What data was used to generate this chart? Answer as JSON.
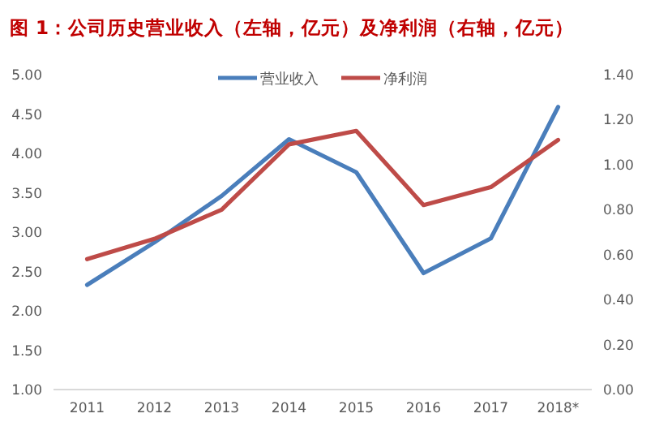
{
  "chart_data": {
    "type": "line",
    "title": "图 1：公司历史营业收入（左轴，亿元）及净利润（右轴，亿元）",
    "categories": [
      "2011",
      "2012",
      "2013",
      "2014",
      "2015",
      "2016",
      "2017",
      "2018*"
    ],
    "series": [
      {
        "name": "营业收入",
        "color": "#4a7ebb",
        "values": [
          2.33,
          2.87,
          3.46,
          4.18,
          3.76,
          2.48,
          2.92,
          4.59
        ]
      },
      {
        "name": "净利润",
        "color": "#be4b48",
        "axis": "y2",
        "values": [
          0.58,
          0.67,
          0.8,
          1.09,
          1.15,
          0.82,
          0.9,
          1.11
        ]
      }
    ],
    "ylim": [
      1,
      5
    ],
    "yticks": [
      {
        "value": 1,
        "label": "1.00"
      },
      {
        "value": 1.5,
        "label": "1.50"
      },
      {
        "value": 2,
        "label": "2.00"
      },
      {
        "value": 2.5,
        "label": "2.50"
      },
      {
        "value": 3,
        "label": "3.00"
      },
      {
        "value": 3.5,
        "label": "3.50"
      },
      {
        "value": 4,
        "label": "4.00"
      },
      {
        "value": 4.5,
        "label": "4.50"
      },
      {
        "value": 5,
        "label": "5.00"
      }
    ],
    "y2lim": [
      0,
      1.4
    ],
    "y2ticks": [
      {
        "value": 0,
        "label": "0.00"
      },
      {
        "value": 0.2,
        "label": "0.20"
      },
      {
        "value": 0.4,
        "label": "0.40"
      },
      {
        "value": 0.6,
        "label": "0.60"
      },
      {
        "value": 0.8,
        "label": "0.80"
      },
      {
        "value": 1,
        "label": "1.00"
      },
      {
        "value": 1.2,
        "label": "1.20"
      },
      {
        "value": 1.4,
        "label": "1.40"
      }
    ],
    "grid": false,
    "legend": "top",
    "marker": "none",
    "line_style": "solid"
  }
}
